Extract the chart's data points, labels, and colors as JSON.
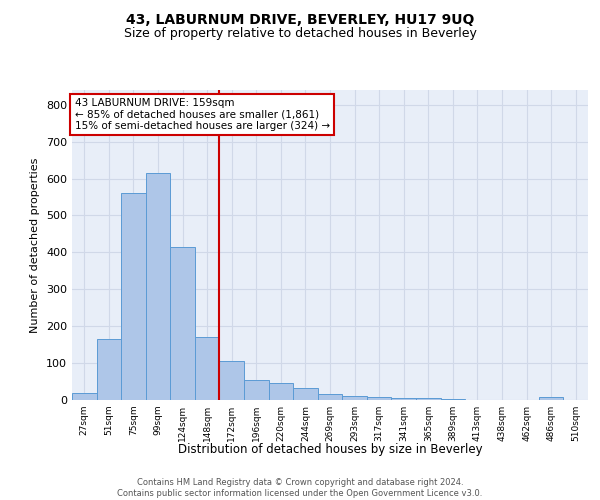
{
  "title": "43, LABURNUM DRIVE, BEVERLEY, HU17 9UQ",
  "subtitle": "Size of property relative to detached houses in Beverley",
  "xlabel": "Distribution of detached houses by size in Beverley",
  "ylabel": "Number of detached properties",
  "bar_labels": [
    "27sqm",
    "51sqm",
    "75sqm",
    "99sqm",
    "124sqm",
    "148sqm",
    "172sqm",
    "196sqm",
    "220sqm",
    "244sqm",
    "269sqm",
    "293sqm",
    "317sqm",
    "341sqm",
    "365sqm",
    "389sqm",
    "413sqm",
    "438sqm",
    "462sqm",
    "486sqm",
    "510sqm"
  ],
  "bar_values": [
    20,
    165,
    560,
    615,
    415,
    170,
    105,
    55,
    45,
    33,
    15,
    10,
    8,
    5,
    5,
    2,
    0,
    0,
    0,
    8,
    0
  ],
  "bar_color": "#aec6e8",
  "bar_edge_color": "#5b9bd5",
  "property_bin_index": 6,
  "property_size": "159sqm",
  "red_line_color": "#cc0000",
  "annotation_text": "43 LABURNUM DRIVE: 159sqm\n← 85% of detached houses are smaller (1,861)\n15% of semi-detached houses are larger (324) →",
  "annotation_box_color": "#ffffff",
  "annotation_box_edge_color": "#cc0000",
  "ylim": [
    0,
    840
  ],
  "yticks": [
    0,
    100,
    200,
    300,
    400,
    500,
    600,
    700,
    800
  ],
  "grid_color": "#d0d8e8",
  "background_color": "#e8eef8",
  "footer_text": "Contains HM Land Registry data © Crown copyright and database right 2024.\nContains public sector information licensed under the Open Government Licence v3.0.",
  "title_fontsize": 10,
  "subtitle_fontsize": 9,
  "bar_width": 1.0
}
